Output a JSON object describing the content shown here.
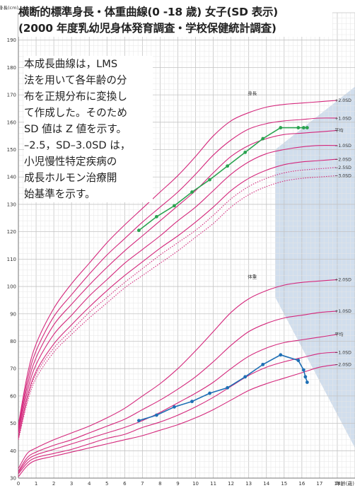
{
  "title_lines": [
    "横断的標準身長・体重曲線(0 -18 歳) 女子(SD 表示)",
    "(2000 年度乳幼児身体発育調査・学校保健統計調査)"
  ],
  "note_lines": [
    "本成長曲線は，LMS",
    "法を用いて各年齢の分",
    "布を正規分布に変換し",
    "て作成した。そのため",
    "SD 値は Z 値を示す。",
    "–2.5，SD–3.0SD は，",
    "小児慢性特定疾病の",
    "成長ホルモン治療開",
    "始基準を示す。"
  ],
  "colors": {
    "grid_major": "#c4c4c4",
    "grid_minor": "#e6e6e6",
    "reference_curve": "#d4287c",
    "height_measured": "#2aa350",
    "weight_measured": "#1e6fb5",
    "shade": "#c9d8ea"
  },
  "chart_data": {
    "type": "line",
    "xlabel": "年齢(歳)",
    "ylabel": "身長(cm)",
    "xlim": [
      0,
      19
    ],
    "ylim": [
      30,
      200
    ],
    "x_ticks": [
      0,
      1,
      2,
      3,
      4,
      5,
      6,
      7,
      8,
      9,
      10,
      11,
      12,
      13,
      14,
      15,
      16,
      17,
      18
    ],
    "y_ticks": [
      30,
      40,
      50,
      60,
      70,
      80,
      90,
      100,
      110,
      120,
      130,
      140,
      150,
      160,
      170,
      180,
      190
    ],
    "grid": true,
    "group_labels": [
      {
        "text": "身長",
        "x": 13.2,
        "y": 170
      },
      {
        "text": "体重",
        "x": 13.2,
        "y": 103
      }
    ],
    "height_curves": [
      {
        "name": "+2.0SD",
        "style": "solid",
        "points": [
          [
            0,
            49.5
          ],
          [
            0.5,
            67.5
          ],
          [
            1,
            79
          ],
          [
            2,
            92
          ],
          [
            3,
            101
          ],
          [
            4,
            108.5
          ],
          [
            5,
            116
          ],
          [
            6,
            122.5
          ],
          [
            7,
            128.5
          ],
          [
            8,
            134.5
          ],
          [
            9,
            140.5
          ],
          [
            10,
            147.5
          ],
          [
            11,
            155
          ],
          [
            12,
            160.5
          ],
          [
            13,
            163.5
          ],
          [
            14,
            165.5
          ],
          [
            15,
            166.5
          ],
          [
            16,
            167
          ],
          [
            17,
            167.5
          ],
          [
            18,
            168
          ]
        ]
      },
      {
        "name": "+1.0SD",
        "style": "solid",
        "points": [
          [
            0,
            48.5
          ],
          [
            0.5,
            65.5
          ],
          [
            1,
            76.5
          ],
          [
            2,
            89
          ],
          [
            3,
            97
          ],
          [
            4,
            104.5
          ],
          [
            5,
            111.5
          ],
          [
            6,
            117.5
          ],
          [
            7,
            123.5
          ],
          [
            8,
            129
          ],
          [
            9,
            134.5
          ],
          [
            10,
            141
          ],
          [
            11,
            148
          ],
          [
            12,
            153.5
          ],
          [
            13,
            157.5
          ],
          [
            14,
            159.5
          ],
          [
            15,
            160.5
          ],
          [
            16,
            161
          ],
          [
            17,
            161.5
          ],
          [
            18,
            161.5
          ]
        ]
      },
      {
        "name": "平均",
        "style": "solid",
        "points": [
          [
            0,
            47.5
          ],
          [
            0.5,
            63.5
          ],
          [
            1,
            74
          ],
          [
            2,
            86
          ],
          [
            3,
            93.5
          ],
          [
            4,
            100.5
          ],
          [
            5,
            107
          ],
          [
            6,
            113
          ],
          [
            7,
            118.5
          ],
          [
            8,
            124
          ],
          [
            9,
            129.5
          ],
          [
            10,
            135
          ],
          [
            11,
            141.5
          ],
          [
            12,
            147.5
          ],
          [
            13,
            151.5
          ],
          [
            14,
            154
          ],
          [
            15,
            155.5
          ],
          [
            16,
            156
          ],
          [
            17,
            156.5
          ],
          [
            18,
            157
          ]
        ]
      },
      {
        "name": "−1.0SD",
        "style": "solid",
        "points": [
          [
            0,
            46.5
          ],
          [
            0.5,
            61.5
          ],
          [
            1,
            71.5
          ],
          [
            2,
            82.5
          ],
          [
            3,
            89.5
          ],
          [
            4,
            96.5
          ],
          [
            5,
            102.5
          ],
          [
            6,
            108.5
          ],
          [
            7,
            113.5
          ],
          [
            8,
            118.5
          ],
          [
            9,
            124
          ],
          [
            10,
            129
          ],
          [
            11,
            135
          ],
          [
            12,
            141
          ],
          [
            13,
            145.5
          ],
          [
            14,
            148.5
          ],
          [
            15,
            150
          ],
          [
            16,
            151
          ],
          [
            17,
            151.5
          ],
          [
            18,
            151.5
          ]
        ]
      },
      {
        "name": "−2.0SD",
        "style": "solid",
        "points": [
          [
            0,
            45
          ],
          [
            0.5,
            59.5
          ],
          [
            1,
            69
          ],
          [
            2,
            79
          ],
          [
            3,
            86
          ],
          [
            4,
            92.5
          ],
          [
            5,
            98.5
          ],
          [
            6,
            104
          ],
          [
            7,
            109
          ],
          [
            8,
            114
          ],
          [
            9,
            118.5
          ],
          [
            10,
            123.5
          ],
          [
            11,
            129
          ],
          [
            12,
            135
          ],
          [
            13,
            139.5
          ],
          [
            14,
            142.5
          ],
          [
            15,
            144.5
          ],
          [
            16,
            145.5
          ],
          [
            17,
            146
          ],
          [
            18,
            146.5
          ]
        ]
      },
      {
        "name": "−2.5SD",
        "style": "dotted",
        "points": [
          [
            0,
            44.5
          ],
          [
            0.5,
            58.5
          ],
          [
            1,
            68
          ],
          [
            2,
            77.5
          ],
          [
            3,
            84
          ],
          [
            4,
            90.5
          ],
          [
            5,
            96
          ],
          [
            6,
            101.5
          ],
          [
            7,
            106.5
          ],
          [
            8,
            111.5
          ],
          [
            9,
            116
          ],
          [
            10,
            120.5
          ],
          [
            11,
            126
          ],
          [
            12,
            132
          ],
          [
            13,
            136.5
          ],
          [
            14,
            139.5
          ],
          [
            15,
            141.5
          ],
          [
            16,
            142.5
          ],
          [
            17,
            143
          ],
          [
            18,
            143.5
          ]
        ]
      },
      {
        "name": "−3.0SD",
        "style": "dotted",
        "points": [
          [
            0,
            44
          ],
          [
            0.5,
            57.5
          ],
          [
            1,
            66.5
          ],
          [
            2,
            76
          ],
          [
            3,
            82.5
          ],
          [
            4,
            88.5
          ],
          [
            5,
            94
          ],
          [
            6,
            99.5
          ],
          [
            7,
            104
          ],
          [
            8,
            108.5
          ],
          [
            9,
            113
          ],
          [
            10,
            118
          ],
          [
            11,
            123
          ],
          [
            12,
            129
          ],
          [
            13,
            133.5
          ],
          [
            14,
            136.5
          ],
          [
            15,
            138.5
          ],
          [
            16,
            139.5
          ],
          [
            17,
            140
          ],
          [
            18,
            140.5
          ]
        ]
      }
    ],
    "weight_curves": [
      {
        "name": "+2.0SD",
        "style": "solid",
        "points": [
          [
            0,
            33.5
          ],
          [
            0.5,
            39
          ],
          [
            1,
            41
          ],
          [
            2,
            44
          ],
          [
            3,
            46.5
          ],
          [
            4,
            49
          ],
          [
            5,
            52
          ],
          [
            6,
            55.5
          ],
          [
            7,
            60
          ],
          [
            8,
            64.5
          ],
          [
            9,
            70
          ],
          [
            10,
            76.5
          ],
          [
            11,
            83.5
          ],
          [
            12,
            90.5
          ],
          [
            13,
            95.5
          ],
          [
            14,
            98.5
          ],
          [
            15,
            100.5
          ],
          [
            16,
            101.5
          ],
          [
            17,
            102
          ],
          [
            18,
            102.5
          ]
        ]
      },
      {
        "name": "+1.0SD",
        "style": "solid",
        "points": [
          [
            0,
            32.5
          ],
          [
            0.5,
            37.5
          ],
          [
            1,
            39.5
          ],
          [
            2,
            42
          ],
          [
            3,
            44
          ],
          [
            4,
            46.5
          ],
          [
            5,
            49
          ],
          [
            6,
            51.5
          ],
          [
            7,
            55
          ],
          [
            8,
            58.5
          ],
          [
            9,
            62.5
          ],
          [
            10,
            67
          ],
          [
            11,
            72.5
          ],
          [
            12,
            78.5
          ],
          [
            13,
            83.5
          ],
          [
            14,
            86.5
          ],
          [
            15,
            88.5
          ],
          [
            16,
            89.5
          ],
          [
            17,
            90.5
          ],
          [
            18,
            91
          ]
        ]
      },
      {
        "name": "平均",
        "style": "solid",
        "points": [
          [
            0,
            32
          ],
          [
            0.5,
            36.5
          ],
          [
            1,
            38.5
          ],
          [
            2,
            40.5
          ],
          [
            3,
            42.5
          ],
          [
            4,
            44.5
          ],
          [
            5,
            46.5
          ],
          [
            6,
            48.5
          ],
          [
            7,
            51
          ],
          [
            8,
            54
          ],
          [
            9,
            57.5
          ],
          [
            10,
            61
          ],
          [
            11,
            65
          ],
          [
            12,
            70
          ],
          [
            13,
            74.5
          ],
          [
            14,
            77.5
          ],
          [
            15,
            79.5
          ],
          [
            16,
            80.5
          ],
          [
            17,
            81.5
          ],
          [
            18,
            82.5
          ]
        ]
      },
      {
        "name": "−1.0SD",
        "style": "solid",
        "points": [
          [
            0,
            31.5
          ],
          [
            0.5,
            35.5
          ],
          [
            1,
            37.5
          ],
          [
            2,
            39
          ],
          [
            3,
            40.5
          ],
          [
            4,
            42.5
          ],
          [
            5,
            44.5
          ],
          [
            6,
            46
          ],
          [
            7,
            48.5
          ],
          [
            8,
            50.5
          ],
          [
            9,
            53
          ],
          [
            10,
            56
          ],
          [
            11,
            59.5
          ],
          [
            12,
            63.5
          ],
          [
            13,
            67.5
          ],
          [
            14,
            70.5
          ],
          [
            15,
            72.5
          ],
          [
            16,
            74
          ],
          [
            17,
            75.5
          ],
          [
            18,
            76
          ]
        ]
      },
      {
        "name": "−2.0SD",
        "style": "solid",
        "points": [
          [
            0,
            30.5
          ],
          [
            0.5,
            34.5
          ],
          [
            1,
            36.5
          ],
          [
            2,
            38
          ],
          [
            3,
            39.5
          ],
          [
            4,
            41
          ],
          [
            5,
            42.5
          ],
          [
            6,
            44
          ],
          [
            7,
            45.5
          ],
          [
            8,
            47.5
          ],
          [
            9,
            49.5
          ],
          [
            10,
            52
          ],
          [
            11,
            55
          ],
          [
            12,
            58.5
          ],
          [
            13,
            62
          ],
          [
            14,
            64.5
          ],
          [
            15,
            66.5
          ],
          [
            16,
            68.5
          ],
          [
            17,
            70.5
          ],
          [
            18,
            71.5
          ]
        ]
      }
    ],
    "series": [
      {
        "role": "height",
        "points": [
          [
            6.8,
            120.5
          ],
          [
            7.8,
            125.5
          ],
          [
            8.8,
            129.5
          ],
          [
            9.8,
            134.5
          ],
          [
            10.8,
            139
          ],
          [
            11.8,
            144
          ],
          [
            12.8,
            149
          ],
          [
            13.8,
            154
          ],
          [
            14.8,
            158
          ],
          [
            15.8,
            158
          ],
          [
            16.1,
            158
          ],
          [
            16.3,
            158
          ]
        ]
      },
      {
        "role": "weight",
        "points": [
          [
            6.8,
            51
          ],
          [
            7.8,
            53
          ],
          [
            8.8,
            56
          ],
          [
            9.8,
            58
          ],
          [
            10.8,
            61
          ],
          [
            11.8,
            63
          ],
          [
            12.8,
            67
          ],
          [
            13.8,
            71.5
          ],
          [
            14.8,
            75
          ],
          [
            15.8,
            73
          ],
          [
            16.1,
            69.5
          ],
          [
            16.2,
            67
          ],
          [
            16.3,
            65
          ]
        ]
      }
    ]
  }
}
